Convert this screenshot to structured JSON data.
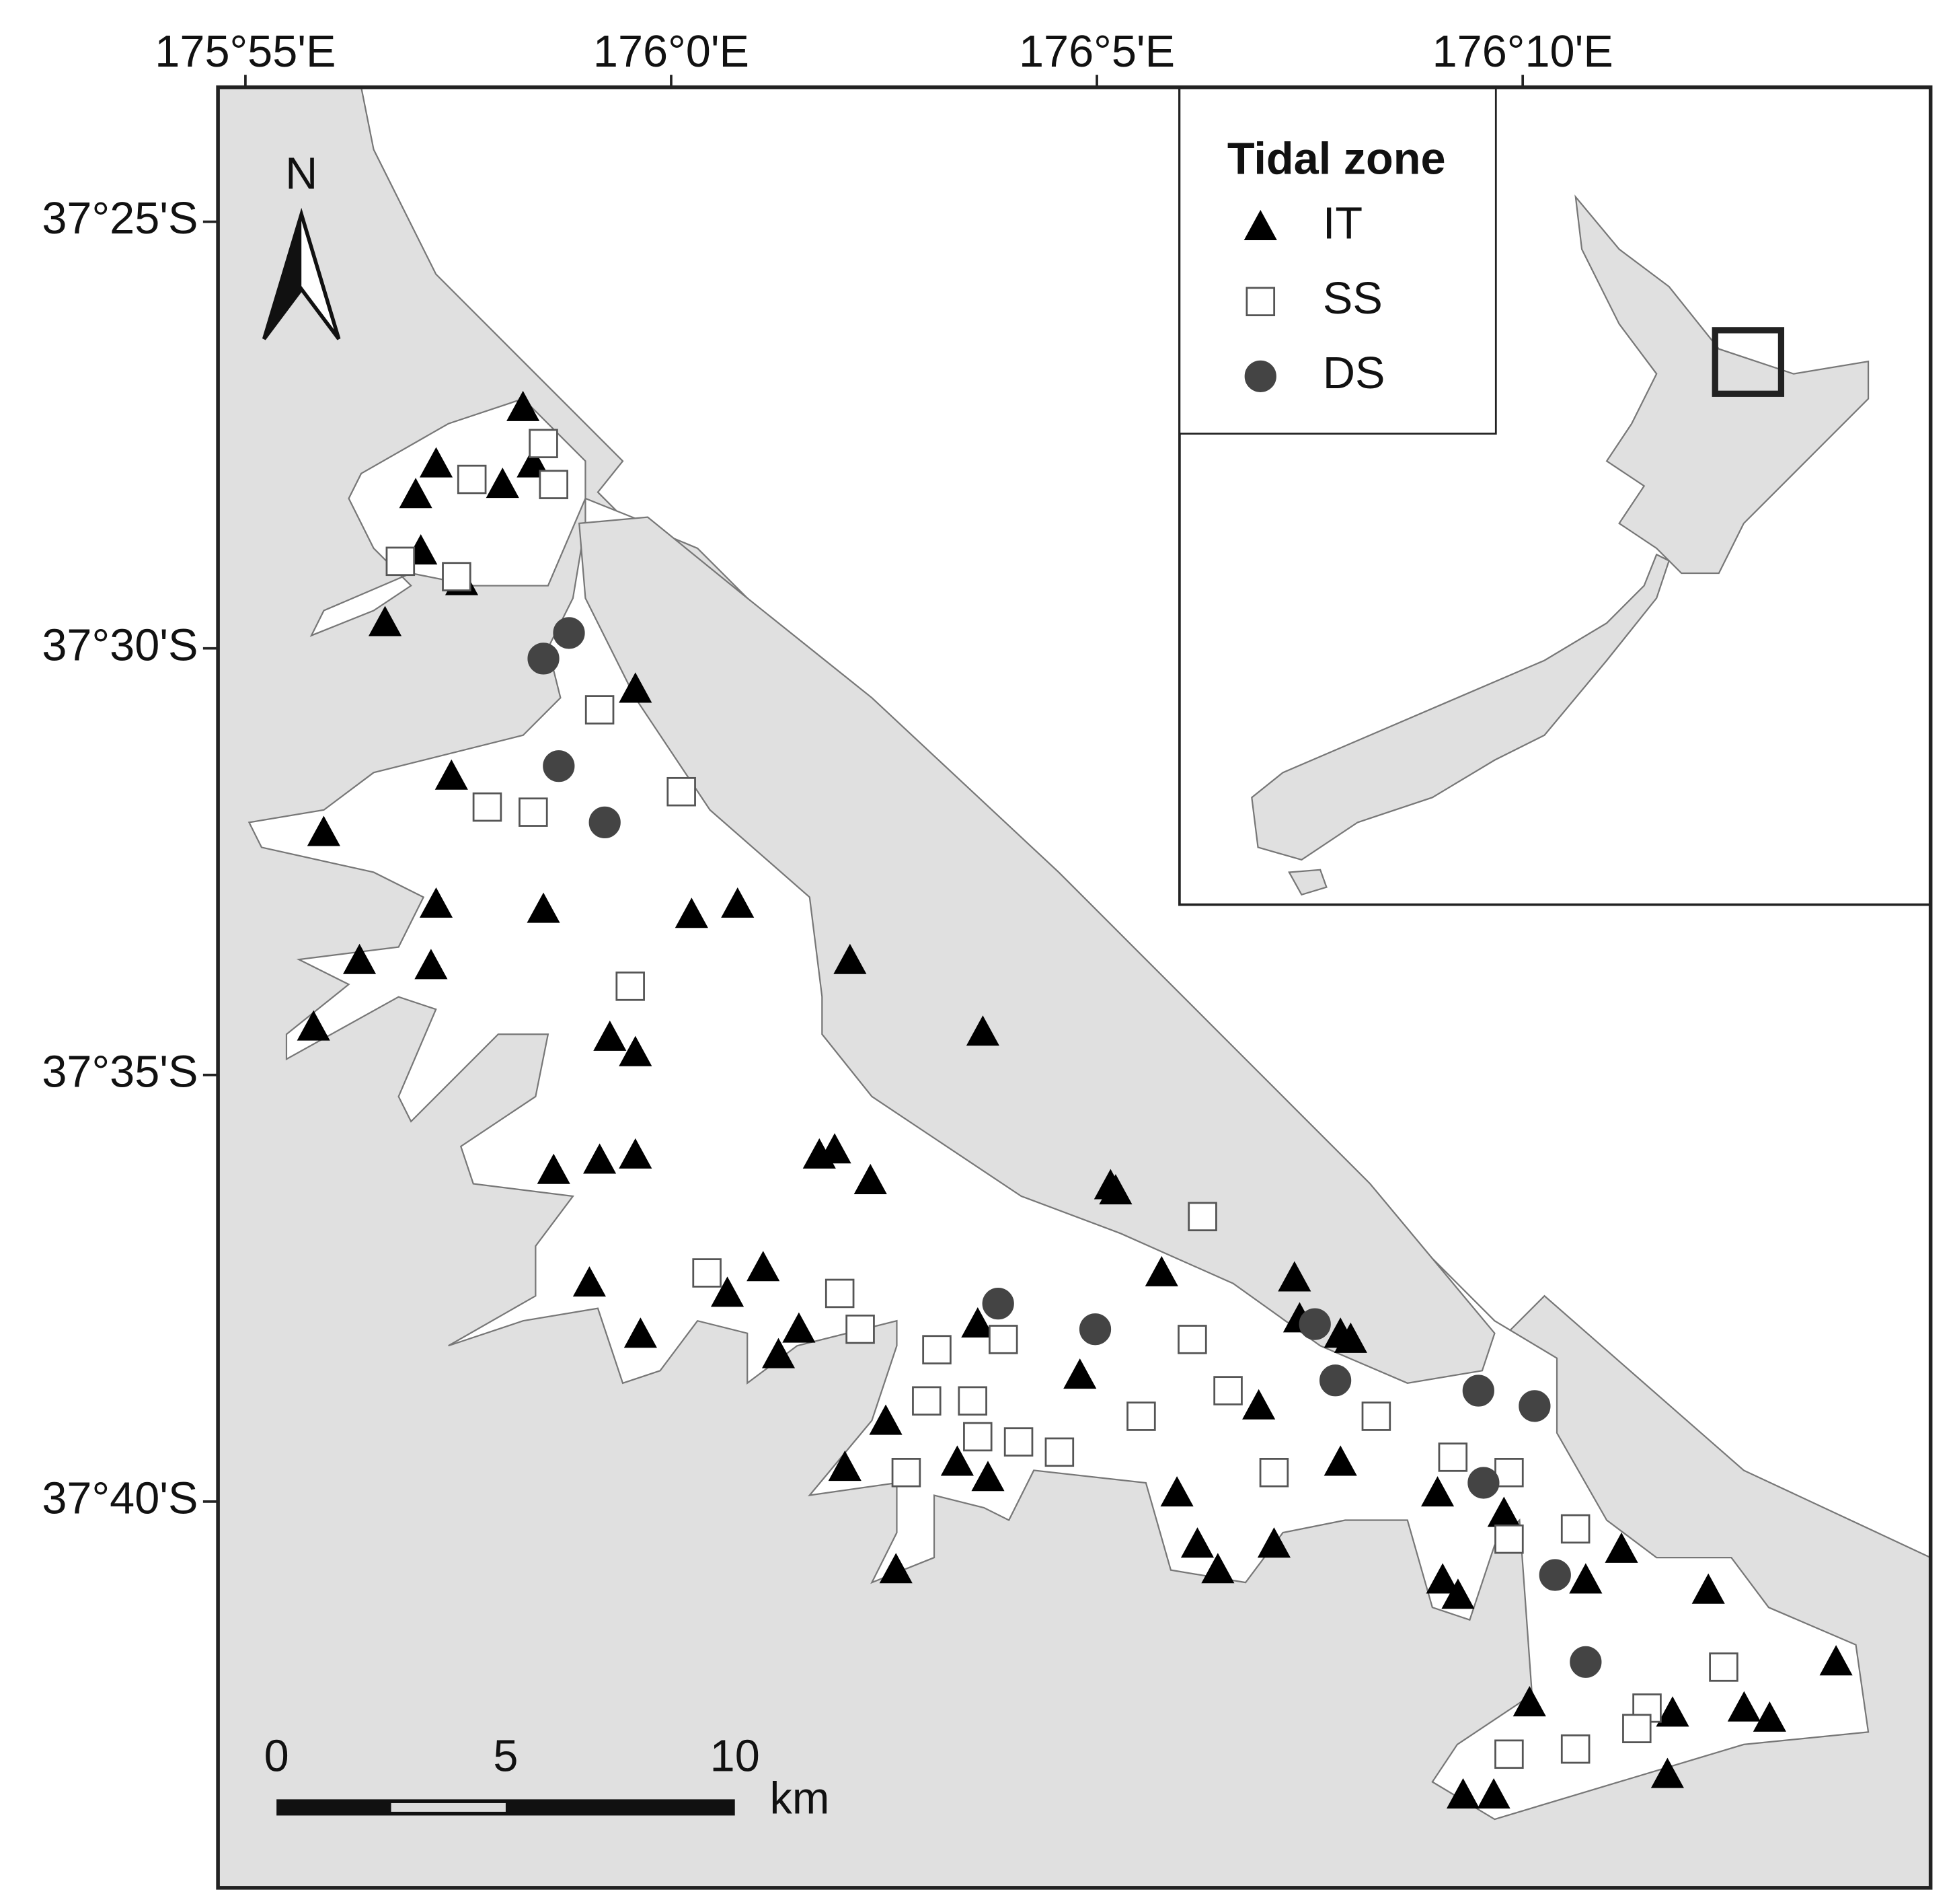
{
  "chart_data": {
    "type": "scatter",
    "xlim": [
      175.9113,
      176.2465
    ],
    "ylim": [
      -37.3904,
      -37.7421
    ],
    "xticks": [
      {
        "value": 175.91667,
        "label": "175°55'E"
      },
      {
        "value": 176.0,
        "label": "176°0'E"
      },
      {
        "value": 176.08333,
        "label": "176°5'E"
      },
      {
        "value": 176.16667,
        "label": "176°10'E"
      }
    ],
    "yticks": [
      {
        "value": -37.41667,
        "label": "37°25'S"
      },
      {
        "value": -37.5,
        "label": "37°30'S"
      },
      {
        "value": -37.58333,
        "label": "37°35'S"
      },
      {
        "value": -37.66667,
        "label": "37°40'S"
      }
    ],
    "north_label": "N",
    "legend_title": "Tidal zone",
    "series": [
      {
        "name": "IT",
        "marker": "triangle",
        "color": "#000000",
        "x": [
          175.971,
          175.954,
          175.95,
          175.967,
          175.973,
          175.951,
          175.959,
          175.944,
          175.993,
          175.957,
          175.932,
          175.954,
          175.975,
          176.004,
          176.013,
          175.939,
          175.953,
          176.035,
          175.93,
          175.988,
          175.993,
          176.061,
          175.977,
          175.986,
          175.993,
          176.029,
          176.032,
          176.039,
          176.086,
          176.087,
          175.984,
          176.018,
          176.011,
          175.994,
          176.025,
          176.021,
          176.06,
          176.096,
          176.122,
          176.123,
          176.131,
          176.133,
          176.08,
          176.042,
          176.115,
          176.034,
          176.056,
          176.062,
          176.131,
          176.099,
          176.15,
          176.163,
          176.103,
          176.107,
          176.118,
          176.044,
          176.151,
          176.154,
          176.179,
          176.186,
          176.203,
          176.168,
          176.196,
          176.21,
          176.215,
          176.228,
          176.195,
          176.155,
          176.161
        ],
        "y": [
          -37.453,
          -37.464,
          -37.47,
          -37.468,
          -37.464,
          -37.481,
          -37.487,
          -37.495,
          -37.508,
          -37.525,
          -37.536,
          -37.55,
          -37.551,
          -37.552,
          -37.55,
          -37.561,
          -37.562,
          -37.561,
          -37.574,
          -37.576,
          -37.579,
          -37.575,
          -37.602,
          -37.6,
          -37.599,
          -37.599,
          -37.598,
          -37.604,
          -37.605,
          -37.606,
          -37.624,
          -37.621,
          -37.626,
          -37.634,
          -37.633,
          -37.638,
          -37.632,
          -37.622,
          -37.623,
          -37.631,
          -37.634,
          -37.635,
          -37.642,
          -37.651,
          -37.648,
          -37.66,
          -37.659,
          -37.662,
          -37.659,
          -37.665,
          -37.665,
          -37.669,
          -37.675,
          -37.68,
          -37.675,
          -37.68,
          -37.682,
          -37.685,
          -37.682,
          -37.676,
          -37.684,
          -37.706,
          -37.708,
          -37.707,
          -37.709,
          -37.698,
          -37.72,
          -37.724,
          -37.724
        ]
      },
      {
        "name": "SS",
        "marker": "square",
        "color": "#ffffff",
        "x": [
          175.975,
          175.961,
          175.977,
          175.947,
          175.958,
          175.986,
          176.002,
          175.964,
          175.973,
          175.992,
          176.104,
          176.007,
          176.033,
          176.037,
          176.052,
          176.065,
          176.102,
          176.109,
          176.05,
          176.059,
          176.092,
          176.138,
          176.06,
          176.068,
          176.076,
          176.153,
          176.118,
          176.164,
          176.046,
          176.177,
          176.164,
          176.206,
          176.191,
          176.189,
          176.177,
          176.164
        ],
        "y": [
          -37.46,
          -37.467,
          -37.468,
          -37.483,
          -37.486,
          -37.512,
          -37.528,
          -37.531,
          -37.532,
          -37.566,
          -37.611,
          -37.622,
          -37.626,
          -37.633,
          -37.637,
          -37.635,
          -37.635,
          -37.645,
          -37.647,
          -37.647,
          -37.65,
          -37.65,
          -37.654,
          -37.655,
          -37.657,
          -37.658,
          -37.661,
          -37.661,
          -37.661,
          -37.672,
          -37.674,
          -37.699,
          -37.707,
          -37.711,
          -37.715,
          -37.716
        ]
      },
      {
        "name": "DS",
        "marker": "circle",
        "color": "#444444",
        "x": [
          175.98,
          175.975,
          175.978,
          175.987,
          176.064,
          176.083,
          176.126,
          176.13,
          176.158,
          176.169,
          176.159,
          176.173,
          176.179
        ],
        "y": [
          -37.497,
          -37.502,
          -37.523,
          -37.534,
          -37.628,
          -37.633,
          -37.632,
          -37.643,
          -37.645,
          -37.648,
          -37.663,
          -37.681,
          -37.698
        ]
      }
    ],
    "scale_bar": {
      "ticks": [
        0,
        5,
        10
      ],
      "unit": "km"
    }
  }
}
